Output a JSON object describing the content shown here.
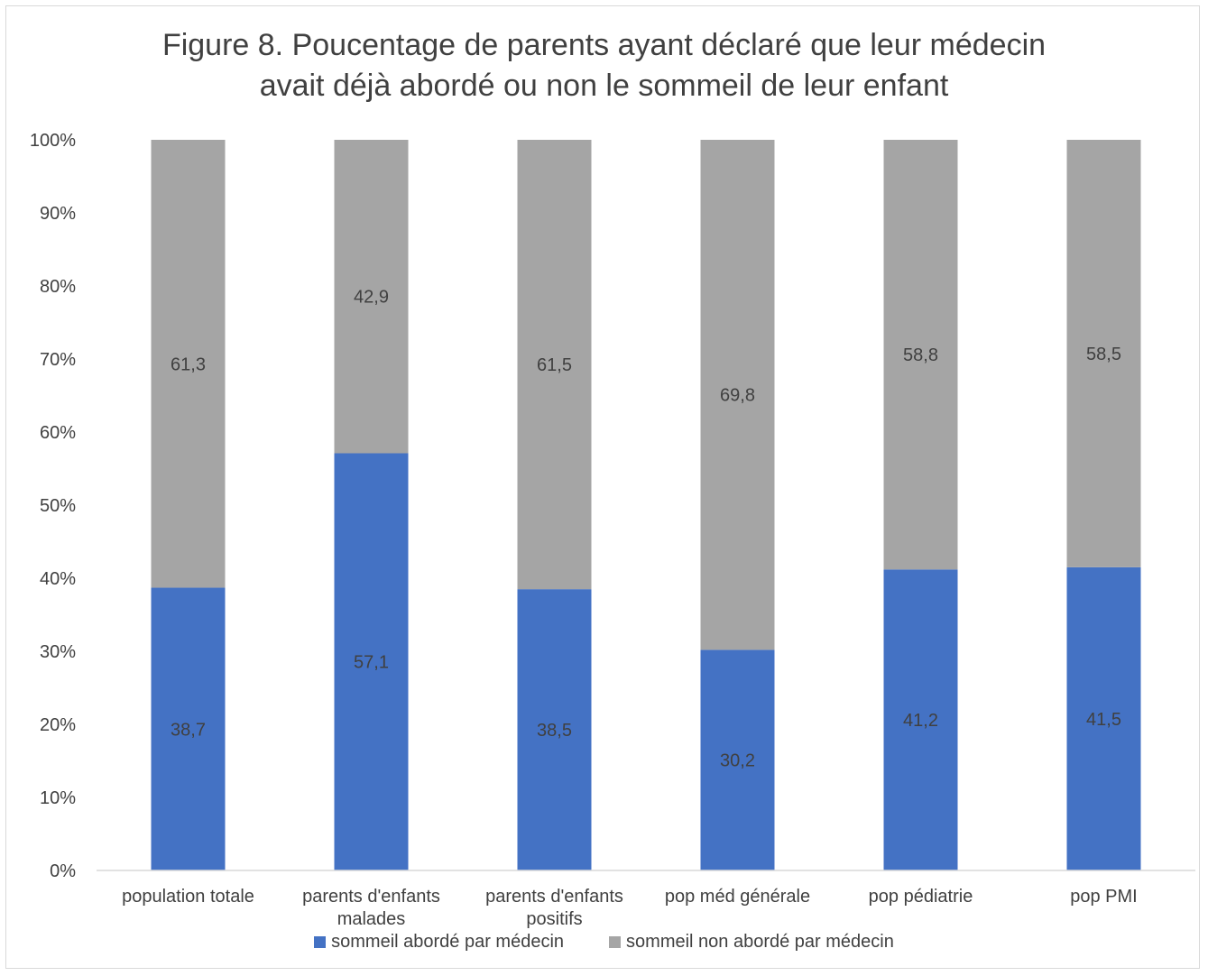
{
  "chart_data": {
    "type": "bar",
    "stacked": true,
    "percent_stacked": true,
    "title": "Figure 8. Poucentage de parents ayant déclaré que leur médecin avait déjà abordé ou non le sommeil de leur enfant",
    "title_lines": [
      "Figure 8. Poucentage de parents ayant déclaré que leur médecin",
      "avait déjà abordé ou non le sommeil de leur enfant"
    ],
    "categories": [
      [
        "population totale"
      ],
      [
        "parents d'enfants",
        "malades"
      ],
      [
        "parents d'enfants",
        "positifs"
      ],
      [
        "pop méd générale"
      ],
      [
        "pop pédiatrie"
      ],
      [
        "pop PMI"
      ]
    ],
    "series": [
      {
        "name": "sommeil abordé par médecin",
        "color": "#4472c4",
        "values": [
          38.7,
          57.1,
          38.5,
          30.2,
          41.2,
          41.5
        ],
        "labels": [
          "38,7",
          "57,1",
          "38,5",
          "30,2",
          "41,2",
          "41,5"
        ]
      },
      {
        "name": "sommeil non abordé par médecin",
        "color": "#a5a5a5",
        "values": [
          61.3,
          42.9,
          61.5,
          69.8,
          58.8,
          58.5
        ],
        "labels": [
          "61,3",
          "42,9",
          "61,5",
          "69,8",
          "58,8",
          "58,5"
        ]
      }
    ],
    "ylim": [
      0,
      100
    ],
    "yticks": [
      0,
      10,
      20,
      30,
      40,
      50,
      60,
      70,
      80,
      90,
      100
    ],
    "ytick_labels": [
      "0%",
      "10%",
      "20%",
      "30%",
      "40%",
      "50%",
      "60%",
      "70%",
      "80%",
      "90%",
      "100%"
    ],
    "grid": false,
    "legend_position": "bottom",
    "text_color": "#404040",
    "axis_color": "#d9d9d9"
  }
}
